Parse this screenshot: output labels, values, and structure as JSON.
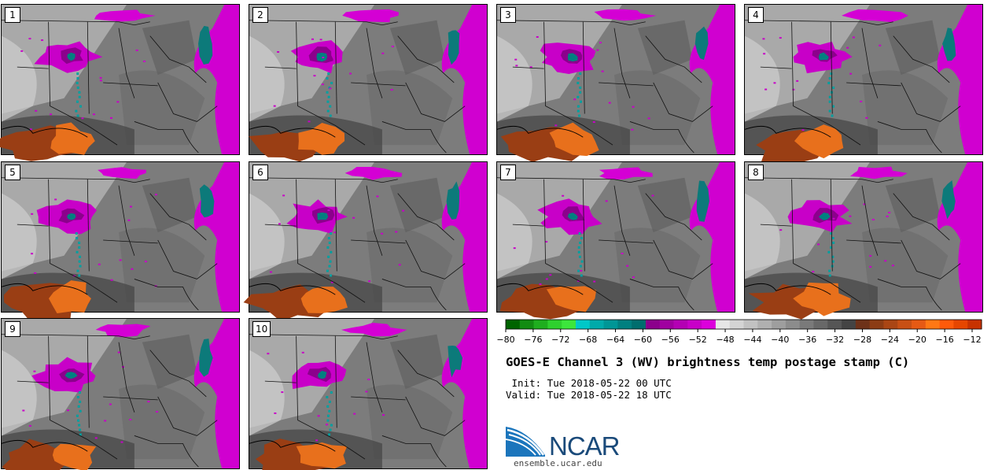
{
  "panels": [
    {
      "number": "1"
    },
    {
      "number": "2"
    },
    {
      "number": "3"
    },
    {
      "number": "4"
    },
    {
      "number": "5"
    },
    {
      "number": "6"
    },
    {
      "number": "7"
    },
    {
      "number": "8"
    },
    {
      "number": "9"
    },
    {
      "number": "10"
    }
  ],
  "colorbar": {
    "colors": [
      "#006400",
      "#128c12",
      "#1fae1f",
      "#2ed02e",
      "#3ce63c",
      "#00c8c8",
      "#00aaaa",
      "#009696",
      "#008080",
      "#006e6e",
      "#8c008c",
      "#a000a0",
      "#b400b4",
      "#c800c8",
      "#dc00dc",
      "#e6e6e6",
      "#d4d4d4",
      "#c2c2c2",
      "#b0b0b0",
      "#9e9e9e",
      "#8c8c8c",
      "#7a7a7a",
      "#686868",
      "#565656",
      "#444444",
      "#6e3219",
      "#8c3c14",
      "#aa4614",
      "#c85014",
      "#e65a14",
      "#ff7814",
      "#ff5a0a",
      "#e64600",
      "#c83200"
    ],
    "tick_labels": [
      "-80",
      "-76",
      "-72",
      "-68",
      "-64",
      "-60",
      "-56",
      "-52",
      "-48",
      "-44",
      "-40",
      "-36",
      "-32",
      "-28",
      "-24",
      "-20",
      "-16",
      "-12"
    ]
  },
  "title": "GOES-E Channel 3 (WV) brightness temp postage stamp (C)",
  "init_line": " Init: Tue 2018-05-22 00 UTC",
  "valid_line": "Valid: Tue 2018-05-22 18 UTC",
  "logo": {
    "text": "NCAR",
    "url": "ensemble.ucar.edu"
  }
}
